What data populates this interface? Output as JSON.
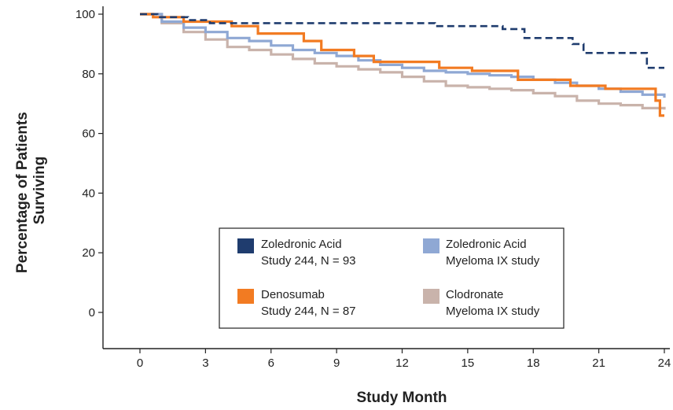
{
  "chart_data": {
    "type": "line",
    "step": true,
    "xlabel": "Study Month",
    "ylabel_lines": [
      "Percentage of Patients",
      "Surviving"
    ],
    "xlim": [
      0,
      24
    ],
    "ylim": [
      -10,
      100
    ],
    "xticks": [
      0,
      3,
      6,
      9,
      12,
      15,
      18,
      21,
      24
    ],
    "yticks": [
      0,
      20,
      40,
      60,
      80,
      100
    ],
    "grid": false,
    "legend_position": "lower-center",
    "series": [
      {
        "name_lines": [
          "Zoledronic Acid",
          "Study 244, N = 93"
        ],
        "color": "#1f3c6e",
        "dashed": true,
        "x": [
          0,
          0.8,
          2.2,
          3.2,
          13.5,
          16.6,
          17.6,
          19.8,
          20.3,
          23.2,
          24
        ],
        "y": [
          100,
          99,
          98,
          97,
          96,
          95,
          92,
          90,
          87,
          82,
          82
        ]
      },
      {
        "name_lines": [
          "Zoledronic Acid",
          "Myeloma IX study"
        ],
        "color": "#8fa8d4",
        "dashed": false,
        "x": [
          0,
          1,
          2,
          3,
          4,
          5,
          6,
          7,
          8,
          9,
          10,
          11,
          12,
          13,
          14,
          15,
          16,
          17,
          18,
          19,
          20,
          21,
          22,
          23,
          24
        ],
        "y": [
          100,
          97.5,
          95.5,
          94,
          92,
          91,
          89.5,
          88,
          87,
          86,
          84.5,
          83,
          82,
          81,
          80.5,
          80,
          79.5,
          79,
          78,
          77,
          76,
          75,
          74,
          73,
          72
        ]
      },
      {
        "name_lines": [
          "Denosumab",
          "Study 244, N = 87"
        ],
        "color": "#f27b22",
        "dashed": false,
        "x": [
          0,
          0.6,
          2,
          4.2,
          5.4,
          7.5,
          8.3,
          9.8,
          10.7,
          13.7,
          15.2,
          17.3,
          19.7,
          21.3,
          23.6,
          23.8,
          24
        ],
        "y": [
          100,
          99,
          97.5,
          96,
          93.5,
          91,
          88,
          86,
          84,
          82,
          81,
          78,
          76,
          75,
          71,
          66,
          66
        ]
      },
      {
        "name_lines": [
          "Clodronate",
          "Myeloma IX study"
        ],
        "color": "#c9b3ab",
        "dashed": false,
        "x": [
          0,
          1,
          2,
          3,
          4,
          5,
          6,
          7,
          8,
          9,
          10,
          11,
          12,
          13,
          14,
          15,
          16,
          17,
          18,
          19,
          20,
          21,
          22,
          23,
          24
        ],
        "y": [
          100,
          97,
          94,
          91.5,
          89,
          88,
          86.5,
          85,
          83.5,
          82.5,
          81.5,
          80.5,
          79,
          77.5,
          76,
          75.5,
          75,
          74.5,
          73.5,
          72.5,
          71,
          70,
          69.5,
          68.5,
          68
        ]
      }
    ]
  }
}
